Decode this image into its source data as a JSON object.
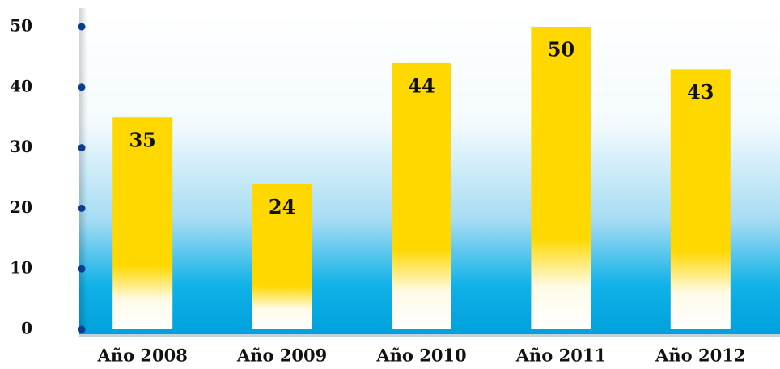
{
  "chart_data": {
    "type": "bar",
    "categories": [
      "Año 2008",
      "Año 2009",
      "Año 2010",
      "Año 2011",
      "Año 2012"
    ],
    "values": [
      35,
      24,
      44,
      50,
      43
    ],
    "color": "#ffd800",
    "ylim": [
      0,
      50
    ],
    "yticks": [
      0,
      10,
      20,
      30,
      40,
      50
    ],
    "grid": false
  }
}
